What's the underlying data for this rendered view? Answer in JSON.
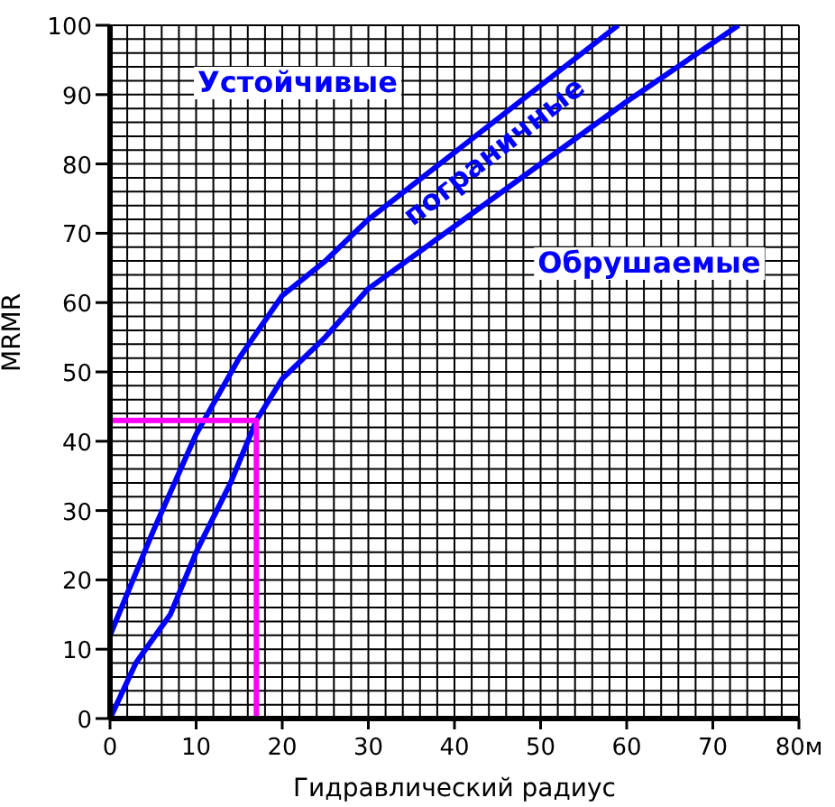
{
  "chart_data": {
    "type": "line",
    "xlabel": "Гидравлический радиус",
    "ylabel": "MRMR",
    "xlim": [
      0,
      80
    ],
    "ylim": [
      0,
      100
    ],
    "xticks": [
      0,
      {
        "value": 2,
        "label": null
      },
      {
        "value": 4,
        "label": null
      },
      {
        "value": 6,
        "label": null
      },
      {
        "value": 8,
        "label": null
      },
      10,
      {
        "value": 12,
        "label": null
      },
      {
        "value": 14,
        "label": null
      },
      {
        "value": 16,
        "label": null
      },
      {
        "value": 18,
        "label": null
      },
      20,
      {
        "value": 22,
        "label": null
      },
      {
        "value": 24,
        "label": null
      },
      {
        "value": 26,
        "label": null
      },
      {
        "value": 28,
        "label": null
      },
      30,
      {
        "value": 32,
        "label": null
      },
      {
        "value": 34,
        "label": null
      },
      {
        "value": 36,
        "label": null
      },
      {
        "value": 38,
        "label": null
      },
      40,
      {
        "value": 42,
        "label": null
      },
      {
        "value": 44,
        "label": null
      },
      {
        "value": 46,
        "label": null
      },
      {
        "value": 48,
        "label": null
      },
      50,
      {
        "value": 52,
        "label": null
      },
      {
        "value": 54,
        "label": null
      },
      {
        "value": 56,
        "label": null
      },
      {
        "value": 58,
        "label": null
      },
      60,
      {
        "value": 62,
        "label": null
      },
      {
        "value": 64,
        "label": null
      },
      {
        "value": 66,
        "label": null
      },
      {
        "value": 68,
        "label": null
      },
      70,
      {
        "value": 72,
        "label": null
      },
      {
        "value": 74,
        "label": null
      },
      {
        "value": 76,
        "label": null
      },
      {
        "value": 78,
        "label": null
      },
      {
        "value": 80,
        "label": "80м"
      }
    ],
    "yticks": [
      0,
      {
        "value": 2,
        "label": null
      },
      {
        "value": 4,
        "label": null
      },
      {
        "value": 6,
        "label": null
      },
      {
        "value": 8,
        "label": null
      },
      10,
      {
        "value": 12,
        "label": null
      },
      {
        "value": 14,
        "label": null
      },
      {
        "value": 16,
        "label": null
      },
      {
        "value": 18,
        "label": null
      },
      20,
      {
        "value": 22,
        "label": null
      },
      {
        "value": 24,
        "label": null
      },
      {
        "value": 26,
        "label": null
      },
      {
        "value": 28,
        "label": null
      },
      30,
      {
        "value": 32,
        "label": null
      },
      {
        "value": 34,
        "label": null
      },
      {
        "value": 36,
        "label": null
      },
      {
        "value": 38,
        "label": null
      },
      40,
      {
        "value": 42,
        "label": null
      },
      {
        "value": 44,
        "label": null
      },
      {
        "value": 46,
        "label": null
      },
      {
        "value": 48,
        "label": null
      },
      50,
      {
        "value": 52,
        "label": null
      },
      {
        "value": 54,
        "label": null
      },
      {
        "value": 56,
        "label": null
      },
      {
        "value": 58,
        "label": null
      },
      60,
      {
        "value": 62,
        "label": null
      },
      {
        "value": 64,
        "label": null
      },
      {
        "value": 66,
        "label": null
      },
      {
        "value": 68,
        "label": null
      },
      70,
      {
        "value": 72,
        "label": null
      },
      {
        "value": 74,
        "label": null
      },
      {
        "value": 76,
        "label": null
      },
      {
        "value": 78,
        "label": null
      },
      80,
      {
        "value": 82,
        "label": null
      },
      {
        "value": 84,
        "label": null
      },
      {
        "value": 86,
        "label": null
      },
      {
        "value": 88,
        "label": null
      },
      90,
      {
        "value": 92,
        "label": null
      },
      {
        "value": 94,
        "label": null
      },
      {
        "value": 96,
        "label": null
      },
      {
        "value": 98,
        "label": null
      },
      100
    ],
    "grid": true,
    "marker": "none",
    "line_style": "solid",
    "series": [
      {
        "color": "#0000ff",
        "x": [
          0,
          5,
          10,
          15,
          20,
          25,
          30,
          59
        ],
        "values": [
          12,
          27,
          41,
          52,
          61,
          66,
          72,
          100
        ]
      },
      {
        "color": "#0000ff",
        "x": [
          0,
          3,
          7,
          10,
          14,
          17,
          20,
          25,
          30,
          60,
          73
        ],
        "values": [
          0,
          8,
          15,
          24,
          34,
          43,
          49,
          55,
          62,
          89,
          100
        ]
      },
      {
        "color": "#ff00ff",
        "x": [
          0,
          17,
          17
        ],
        "values": [
          43,
          43,
          0
        ]
      }
    ],
    "annotations": [
      "Устойчивые",
      "пограничные",
      "Обрушаемые"
    ]
  }
}
